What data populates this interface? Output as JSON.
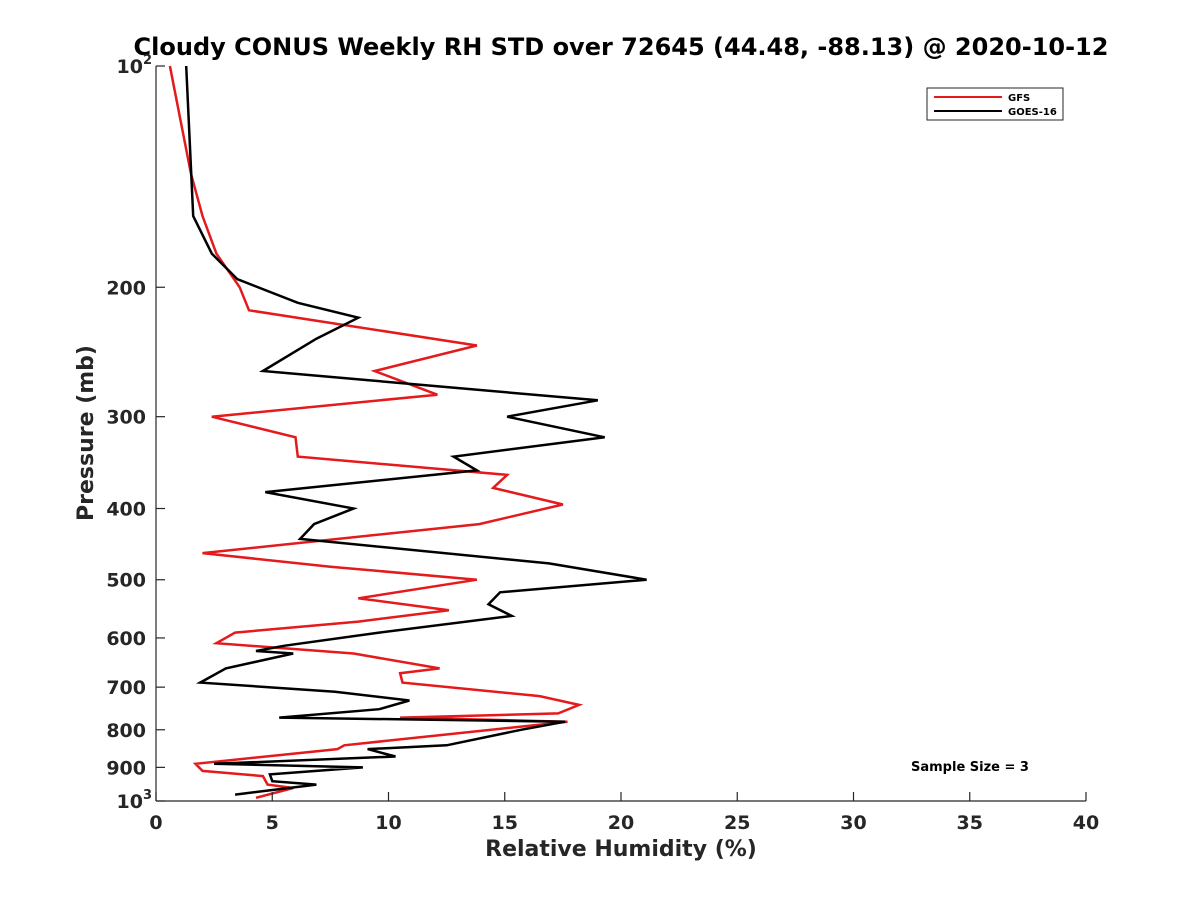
{
  "chart_data": {
    "type": "line",
    "title": "Cloudy CONUS Weekly RH STD over 72645 (44.48, -88.13) @ 2020-10-12",
    "xlabel": "Relative Humidity (%)",
    "ylabel": "Pressure (mb)",
    "xlim": [
      0,
      40
    ],
    "ylim": [
      100,
      1000
    ],
    "y_scale": "log",
    "y_reversed": true,
    "grid": false,
    "legend_position": "top-right",
    "annotation": "Sample Size = 3",
    "x_ticks": [
      "0",
      "5",
      "10",
      "15",
      "20",
      "25",
      "30",
      "35",
      "40"
    ],
    "y_ticks": [
      {
        "value": 100,
        "base": "10",
        "sup": "2"
      },
      {
        "value": 200,
        "label": "200"
      },
      {
        "value": 300,
        "label": "300"
      },
      {
        "value": 400,
        "label": "400"
      },
      {
        "value": 500,
        "label": "500"
      },
      {
        "value": 600,
        "label": "600"
      },
      {
        "value": 700,
        "label": "700"
      },
      {
        "value": 800,
        "label": "800"
      },
      {
        "value": 900,
        "label": "900"
      },
      {
        "value": 1000,
        "base": "10",
        "sup": "3"
      }
    ],
    "series": [
      {
        "name": "GFS",
        "color": "#e41a1c",
        "points": [
          [
            0.6,
            100
          ],
          [
            1.5,
            140
          ],
          [
            2.0,
            160
          ],
          [
            2.6,
            180
          ],
          [
            3.6,
            200
          ],
          [
            4.0,
            215
          ],
          [
            13.8,
            240
          ],
          [
            9.4,
            260
          ],
          [
            12.1,
            280
          ],
          [
            2.4,
            300
          ],
          [
            6.0,
            320
          ],
          [
            6.1,
            340
          ],
          [
            15.1,
            360
          ],
          [
            14.5,
            375
          ],
          [
            17.5,
            395
          ],
          [
            13.9,
            420
          ],
          [
            2.0,
            460
          ],
          [
            7.5,
            480
          ],
          [
            13.8,
            500
          ],
          [
            8.7,
            530
          ],
          [
            12.6,
            550
          ],
          [
            8.7,
            570
          ],
          [
            3.4,
            590
          ],
          [
            2.6,
            610
          ],
          [
            8.5,
            630
          ],
          [
            12.2,
            660
          ],
          [
            10.5,
            670
          ],
          [
            10.6,
            690
          ],
          [
            16.5,
            720
          ],
          [
            18.2,
            740
          ],
          [
            17.3,
            760
          ],
          [
            10.5,
            770
          ],
          [
            17.7,
            780
          ],
          [
            8.1,
            840
          ],
          [
            7.8,
            850
          ],
          [
            1.7,
            890
          ],
          [
            2.0,
            910
          ],
          [
            4.6,
            925
          ],
          [
            4.8,
            950
          ],
          [
            5.9,
            960
          ],
          [
            4.3,
            990
          ]
        ]
      },
      {
        "name": "GOES-16",
        "color": "#000000",
        "points": [
          [
            1.3,
            100
          ],
          [
            1.6,
            160
          ],
          [
            2.4,
            180
          ],
          [
            3.5,
            195
          ],
          [
            6.1,
            210
          ],
          [
            8.7,
            220
          ],
          [
            6.9,
            235
          ],
          [
            4.6,
            260
          ],
          [
            19.0,
            285
          ],
          [
            15.1,
            300
          ],
          [
            19.3,
            320
          ],
          [
            12.8,
            340
          ],
          [
            13.8,
            355
          ],
          [
            4.7,
            380
          ],
          [
            8.5,
            400
          ],
          [
            6.8,
            420
          ],
          [
            6.2,
            440
          ],
          [
            16.9,
            475
          ],
          [
            21.1,
            500
          ],
          [
            14.8,
            520
          ],
          [
            14.3,
            540
          ],
          [
            15.3,
            560
          ],
          [
            9.6,
            590
          ],
          [
            5.5,
            615
          ],
          [
            4.3,
            625
          ],
          [
            5.9,
            630
          ],
          [
            3.0,
            660
          ],
          [
            1.9,
            690
          ],
          [
            7.7,
            710
          ],
          [
            10.9,
            730
          ],
          [
            9.6,
            750
          ],
          [
            5.3,
            770
          ],
          [
            17.6,
            780
          ],
          [
            15.7,
            800
          ],
          [
            12.5,
            840
          ],
          [
            9.1,
            850
          ],
          [
            10.3,
            870
          ],
          [
            2.5,
            890
          ],
          [
            8.9,
            900
          ],
          [
            4.9,
            920
          ],
          [
            5.0,
            940
          ],
          [
            6.9,
            950
          ],
          [
            3.4,
            980
          ]
        ]
      }
    ]
  }
}
